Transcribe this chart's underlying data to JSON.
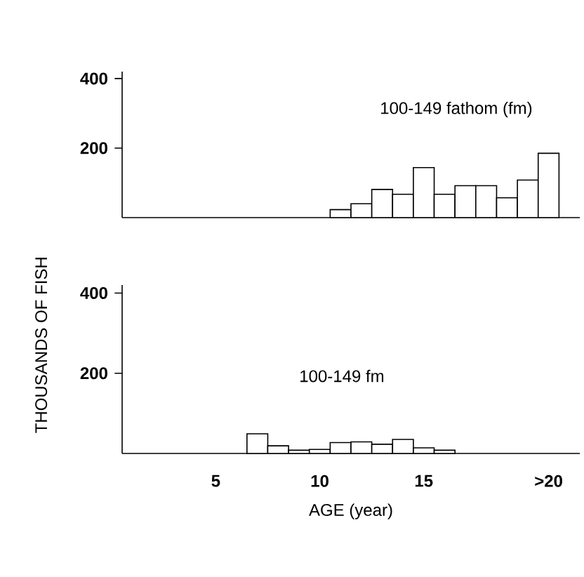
{
  "chart_data": [
    {
      "type": "histogram",
      "ylabel": "THOUSANDS OF FISH",
      "annotations": [
        "100-149 fathom (fm)"
      ],
      "bins": [
        10.5,
        11.5,
        12.5,
        13.5,
        14.5,
        15.5,
        16.5,
        17.5,
        18.5,
        19.5,
        20.5,
        21.5
      ],
      "values": [
        23,
        40,
        81,
        67,
        144,
        67,
        92,
        92,
        57,
        108,
        185
      ],
      "color": "#ffffff",
      "xlim": [
        0.5,
        22.5
      ],
      "ylim": [
        0,
        420
      ],
      "yticks": [
        200,
        400
      ],
      "tick_labels": "y"
    },
    {
      "type": "histogram",
      "xlabel": "AGE (year)",
      "annotations": [
        "100-149 fm"
      ],
      "bins": [
        6.5,
        7.5,
        8.5,
        9.5,
        10.5,
        11.5,
        12.5,
        13.5,
        14.5,
        15.5,
        16.5
      ],
      "values": [
        49,
        19,
        8,
        10,
        27,
        29,
        23,
        35,
        14,
        8
      ],
      "color": "#ffffff",
      "xlim": [
        0.5,
        22.5
      ],
      "ylim": [
        0,
        420
      ],
      "xticks": [
        5,
        10,
        15,
        {
          "value": 21,
          "label": ">20"
        }
      ],
      "yticks": [
        200,
        400
      ]
    }
  ]
}
